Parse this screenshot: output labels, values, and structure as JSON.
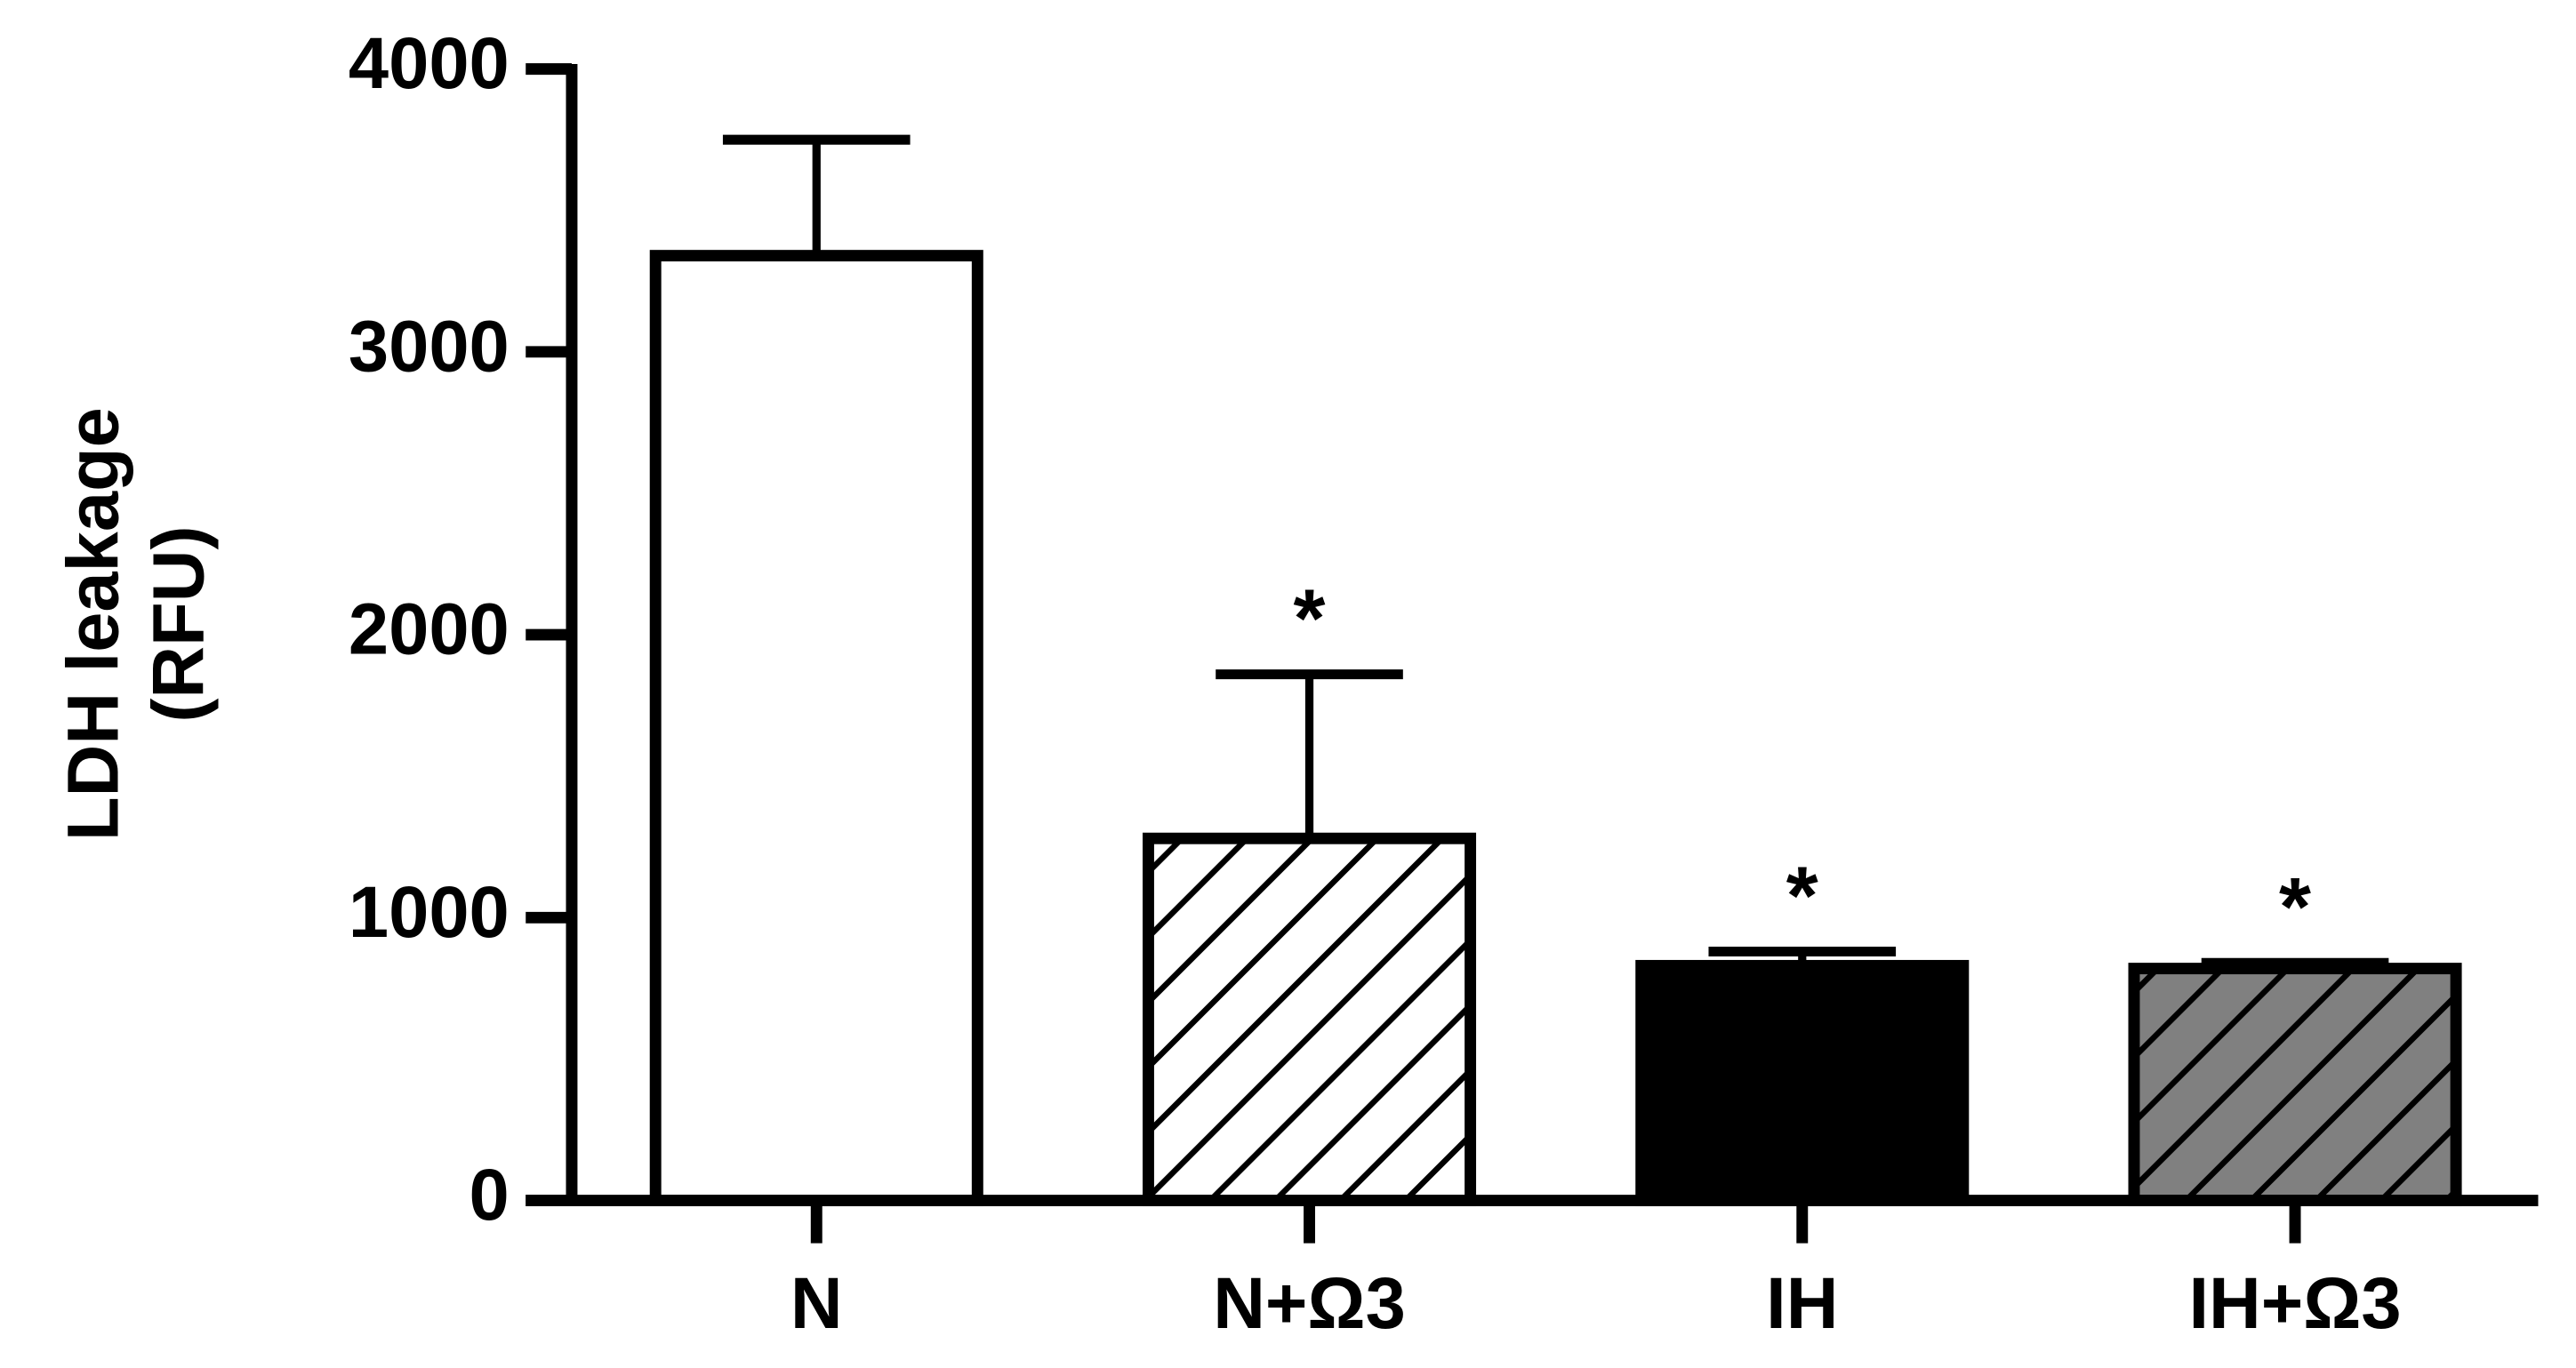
{
  "chart_data": {
    "type": "bar",
    "ylabel": [
      "LDH leakage",
      "(RFU)"
    ],
    "categories": [
      "N",
      "N+Ω3",
      "IH",
      "IH+Ω3"
    ],
    "values": [
      3340,
      1280,
      830,
      820
    ],
    "errors": [
      410,
      580,
      50,
      20
    ],
    "significance": [
      null,
      "*",
      "*",
      "*"
    ],
    "fills": [
      "white",
      "hatch-white",
      "black",
      "hatch-gray"
    ],
    "ylim": [
      0,
      4000
    ],
    "yticks": [
      0,
      1000,
      2000,
      3000,
      4000
    ]
  }
}
